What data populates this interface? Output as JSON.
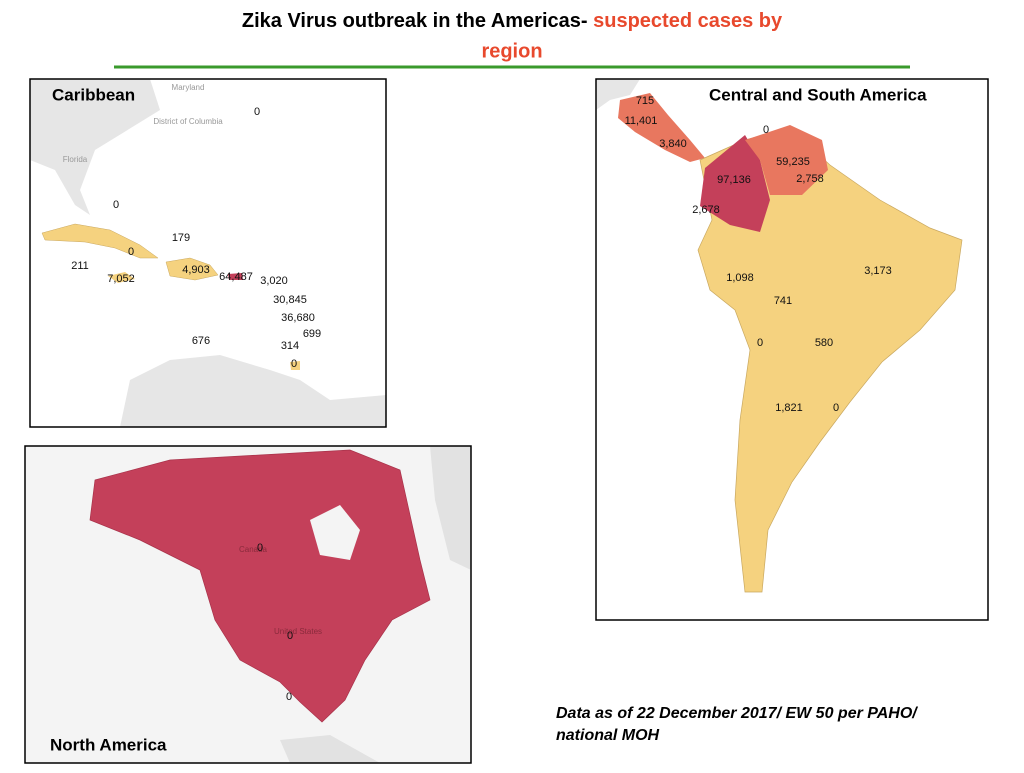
{
  "header": {
    "title": "Zika Virus outbreak in the Americas- ",
    "title_highlight": "suspected cases by region"
  },
  "panels": [
    {
      "name": "Caribbean",
      "place_names": [
        "Maryland",
        "District of Columbia",
        "Florida"
      ],
      "labels": [
        "0",
        "0",
        "179",
        "0",
        "211",
        "4,903",
        "7,052",
        "64,487",
        "3,020",
        "30,845",
        "36,680",
        "699",
        "676",
        "314",
        "0"
      ]
    },
    {
      "name": "Central and South America",
      "place_names": [],
      "labels": [
        "715",
        "11,401",
        "0",
        "3,840",
        "59,235",
        "97,136",
        "2,758",
        "2,678",
        "3,173",
        "1,098",
        "741",
        "0",
        "580",
        "1,821",
        "0"
      ]
    },
    {
      "name": "North America",
      "place_names": [
        "Canada",
        "United States"
      ],
      "labels": [
        "0",
        "0",
        "0"
      ]
    }
  ],
  "footnote": [
    "Data as of 22 December 2017/ EW 50 per PAHO/",
    "national MOH"
  ]
}
